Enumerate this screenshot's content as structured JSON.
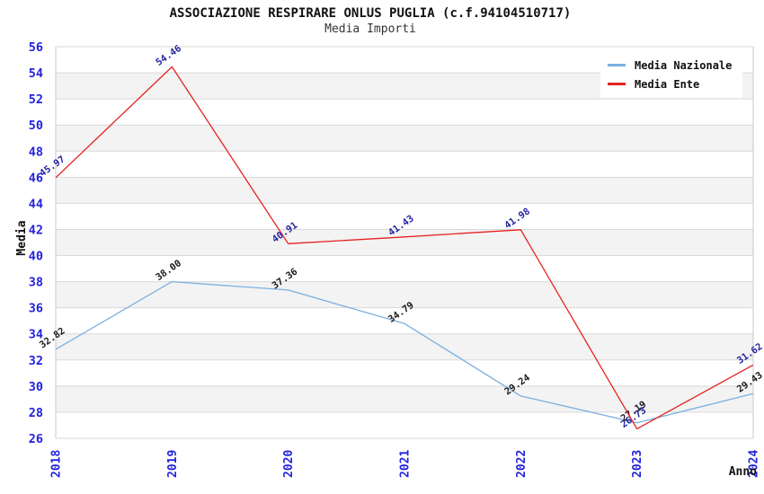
{
  "header": {
    "title": "ASSOCIAZIONE RESPIRARE ONLUS PUGLIA (c.f.94104510717)",
    "subtitle": "Media Importi"
  },
  "chart_data": {
    "type": "line",
    "x": [
      2018,
      2019,
      2020,
      2021,
      2022,
      2023,
      2024
    ],
    "series": [
      {
        "name": "Media Nazionale",
        "color": "#7cb0e0",
        "label_color": "#1a1a1a",
        "values": [
          32.82,
          38.0,
          37.36,
          34.79,
          29.24,
          27.19,
          29.43
        ]
      },
      {
        "name": "Media Ente",
        "color": "#e62222",
        "label_color": "#2525a0",
        "values": [
          45.97,
          54.46,
          40.91,
          41.43,
          41.98,
          26.73,
          31.62
        ]
      }
    ],
    "xlabel": "Anno",
    "ylabel": "Media",
    "ylim": [
      26,
      56
    ],
    "ytick_step": 2,
    "grid": "horizontal-bands",
    "legend_position": "top-right",
    "tick_label_color": "#2222dd",
    "axis_label_color": "#111111",
    "grid_color": "#d9d9d9",
    "spine_color": "#c9c9c9",
    "band_colors": [
      "#ffffff",
      "#f3f3f3"
    ],
    "point_label_decimals": 2
  }
}
